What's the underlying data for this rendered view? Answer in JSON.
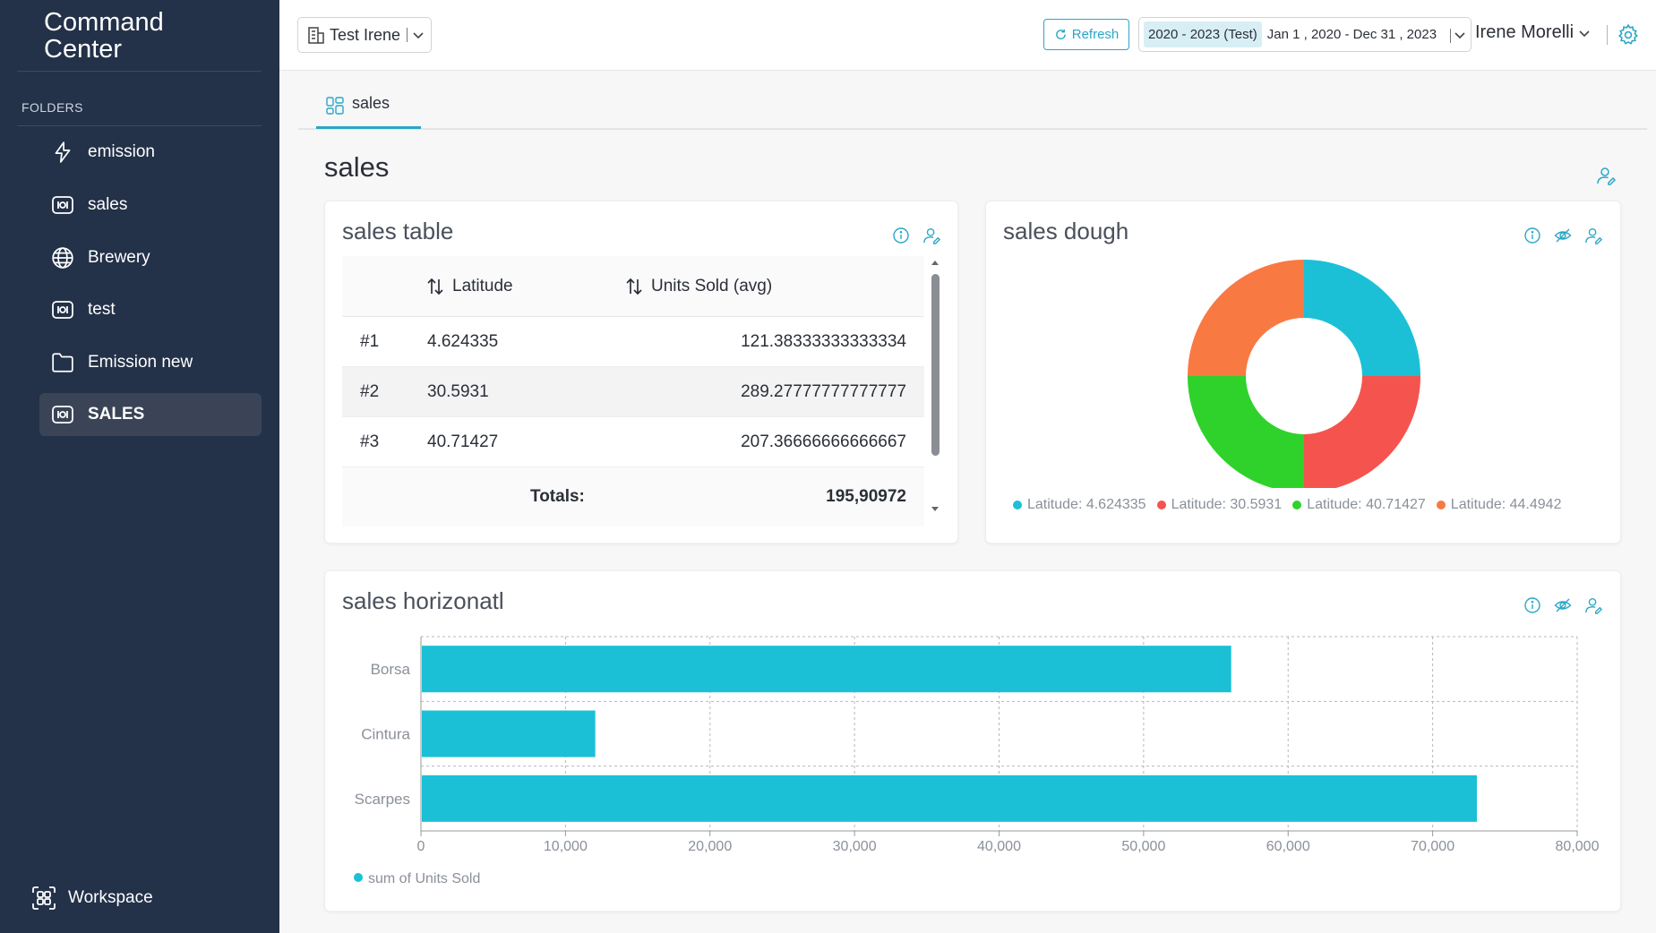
{
  "sidebar": {
    "brand": "Command Center",
    "folders_label": "FOLDERS",
    "items": [
      {
        "label": "emission",
        "icon": "bolt-icon"
      },
      {
        "label": "sales",
        "icon": "ioi-icon"
      },
      {
        "label": "Brewery",
        "icon": "globe-icon"
      },
      {
        "label": "test",
        "icon": "ioi-icon"
      },
      {
        "label": "Emission new",
        "icon": "folder-icon"
      },
      {
        "label": "SALES",
        "icon": "ioi-icon",
        "active": true
      }
    ],
    "workspace": "Workspace"
  },
  "topbar": {
    "tenant": "Test Irene",
    "refresh": "Refresh",
    "date_tag": "2020 - 2023 (Test)",
    "date_range": "Jan 1 , 2020 - Dec 31 , 2023",
    "user": "Irene Morelli"
  },
  "tabs": [
    {
      "label": "sales"
    }
  ],
  "page_title": "sales",
  "colors": {
    "sidebar_bg": "#233149",
    "accent": "#2aa7c6",
    "bar": "#1bc0d6",
    "donut": [
      "#1bc0d6",
      "#f4544d",
      "#2ed22b",
      "#f97943"
    ]
  },
  "table_card": {
    "title": "sales table",
    "headers": [
      "Latitude",
      "Units Sold (avg)"
    ],
    "rows": [
      {
        "rank": "#1",
        "latitude": "4.624335",
        "units": "121.38333333333334"
      },
      {
        "rank": "#2",
        "latitude": "30.5931",
        "units": "289.27777777777777"
      },
      {
        "rank": "#3",
        "latitude": "40.71427",
        "units": "207.36666666666667"
      }
    ],
    "totals_label": "Totals:",
    "totals_value": "195,90972"
  },
  "donut_card": {
    "title": "sales dough",
    "legend": [
      "Latitude: 4.624335",
      "Latitude: 30.5931",
      "Latitude: 40.71427",
      "Latitude: 44.4942"
    ]
  },
  "bar_card": {
    "title": "sales horizonatl",
    "legend": "sum of Units Sold",
    "x_ticks": [
      "0",
      "10,000",
      "20,000",
      "30,000",
      "40,000",
      "50,000",
      "60,000",
      "70,000",
      "80,000"
    ]
  },
  "chart_data": [
    {
      "type": "pie",
      "title": "sales dough",
      "categories": [
        "Latitude: 4.624335",
        "Latitude: 30.5931",
        "Latitude: 40.71427",
        "Latitude: 44.4942"
      ],
      "values": [
        25,
        25,
        25,
        25
      ],
      "legend": "bottom"
    },
    {
      "type": "bar",
      "orientation": "horizontal",
      "title": "sales horizonatl",
      "categories": [
        "Borsa",
        "Cintura",
        "Scarpes"
      ],
      "series": [
        {
          "name": "sum of Units Sold",
          "values": [
            56000,
            12000,
            73000
          ]
        }
      ],
      "xlim": [
        0,
        80000
      ],
      "grid": true,
      "legend": "bottom-left"
    }
  ]
}
